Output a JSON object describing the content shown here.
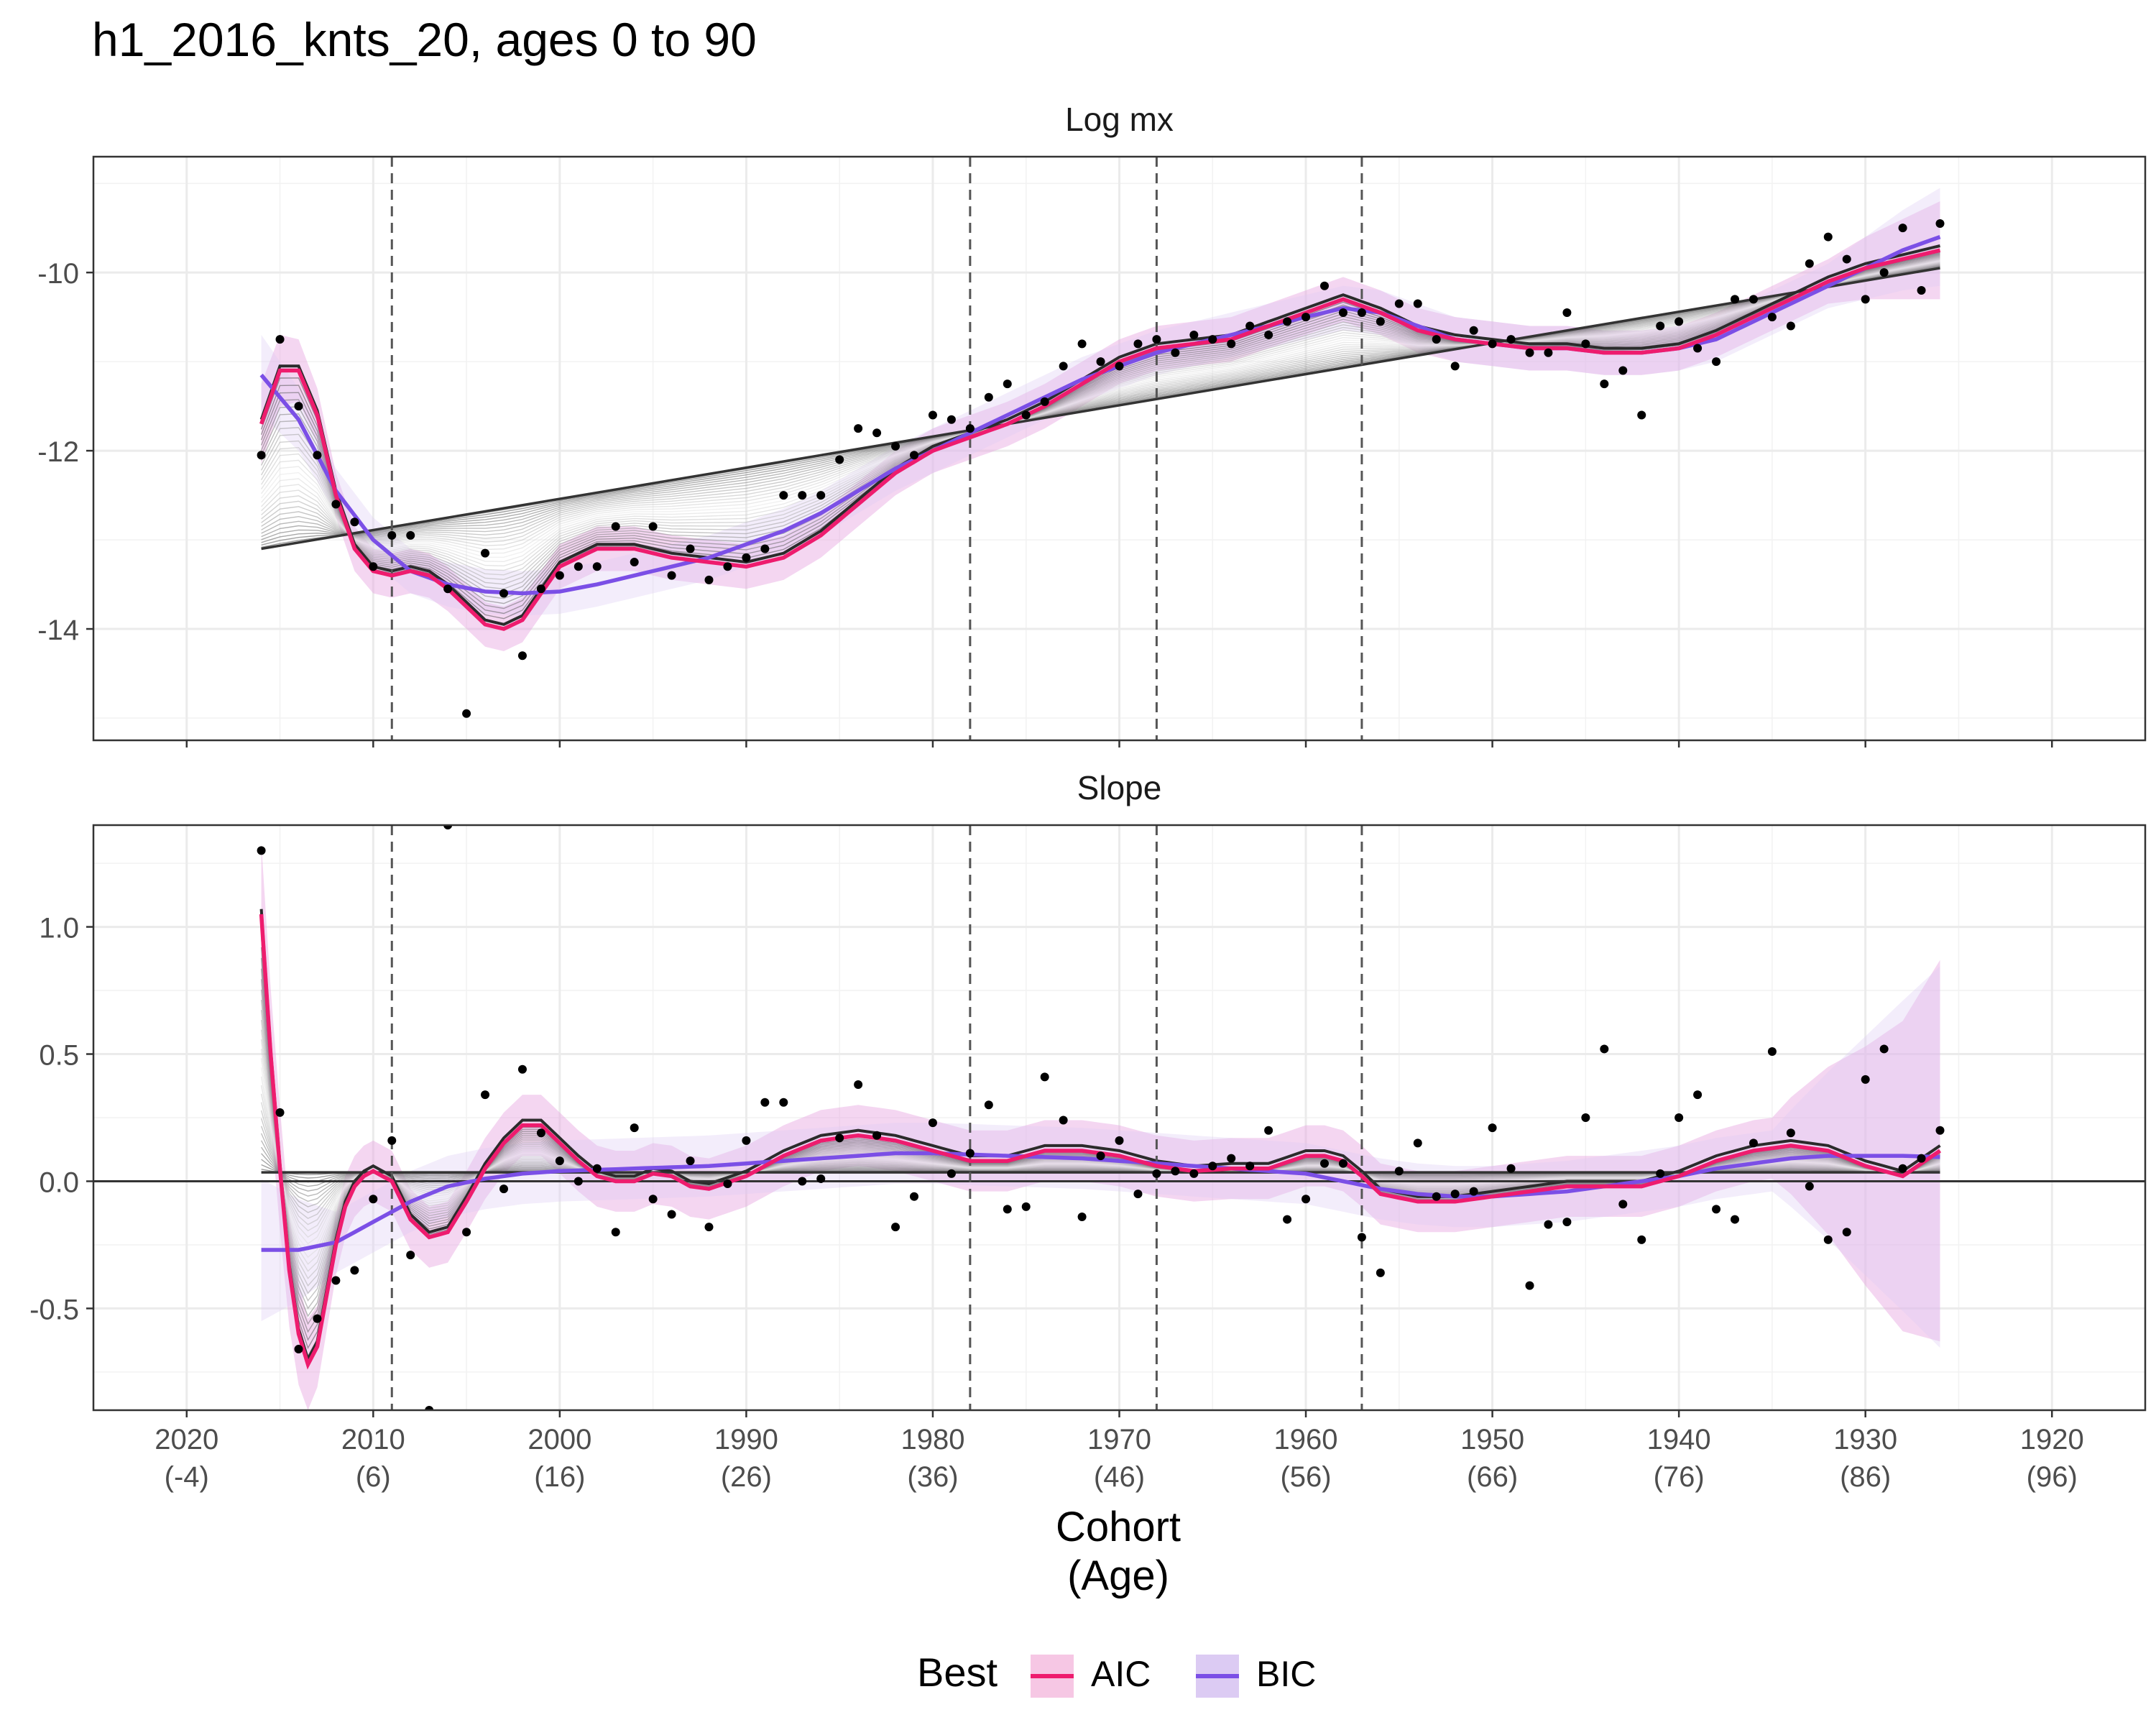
{
  "title": "h1_2016_knts_20, ages 0 to 90",
  "xlabel_line1": "Cohort",
  "xlabel_line2": "(Age)",
  "legend": {
    "title": "Best",
    "items": [
      {
        "label": "AIC",
        "color": "#EE1C6E",
        "fill": "#F6C7E4"
      },
      {
        "label": "BIC",
        "color": "#7B4FE6",
        "fill": "#DCCBF3"
      }
    ]
  },
  "colors": {
    "aic": "#EE1C6E",
    "bic": "#7B4FE6",
    "band": "#E7A5DF",
    "points": "#000000",
    "grid": "#EBEBEB"
  },
  "x_axis": {
    "range": [
      2025,
      1915
    ],
    "ticks": [
      {
        "cohort": 2020,
        "top": "2020",
        "bottom": "(-4)"
      },
      {
        "cohort": 2010,
        "top": "2010",
        "bottom": "(6)"
      },
      {
        "cohort": 2000,
        "top": "2000",
        "bottom": "(16)"
      },
      {
        "cohort": 1990,
        "top": "1990",
        "bottom": "(26)"
      },
      {
        "cohort": 1980,
        "top": "1980",
        "bottom": "(36)"
      },
      {
        "cohort": 1970,
        "top": "1970",
        "bottom": "(46)"
      },
      {
        "cohort": 1960,
        "top": "1960",
        "bottom": "(56)"
      },
      {
        "cohort": 1950,
        "top": "1950",
        "bottom": "(66)"
      },
      {
        "cohort": 1940,
        "top": "1940",
        "bottom": "(76)"
      },
      {
        "cohort": 1930,
        "top": "1930",
        "bottom": "(86)"
      },
      {
        "cohort": 1920,
        "top": "1920",
        "bottom": "(96)"
      }
    ],
    "knots": [
      2009,
      1978,
      1968,
      1957
    ]
  },
  "chart_data": [
    {
      "type": "line",
      "panel": "Log mx",
      "ylim": [
        -15.25,
        -8.7
      ],
      "yticks": [
        -14,
        -12,
        -10
      ],
      "ytick_labels": [
        "-14",
        "-12",
        "-10"
      ],
      "series": [
        {
          "name": "AIC",
          "x": [
            2016,
            2015,
            2014,
            2013,
            2012,
            2011,
            2010,
            2009,
            2008,
            2007,
            2006,
            2005,
            2004,
            2003,
            2002,
            2001,
            2000,
            1998,
            1996,
            1994,
            1992,
            1990,
            1988,
            1986,
            1984,
            1982,
            1980,
            1978,
            1976,
            1974,
            1972,
            1970,
            1968,
            1966,
            1964,
            1962,
            1960,
            1958,
            1956,
            1954,
            1952,
            1950,
            1948,
            1946,
            1944,
            1942,
            1940,
            1938,
            1936,
            1934,
            1932,
            1930,
            1928,
            1926
          ],
          "y": [
            -11.7,
            -11.1,
            -11.1,
            -11.6,
            -12.5,
            -13.1,
            -13.35,
            -13.4,
            -13.35,
            -13.4,
            -13.55,
            -13.75,
            -13.95,
            -14.0,
            -13.9,
            -13.6,
            -13.3,
            -13.1,
            -13.1,
            -13.2,
            -13.25,
            -13.3,
            -13.2,
            -12.95,
            -12.6,
            -12.25,
            -12.0,
            -11.85,
            -11.7,
            -11.5,
            -11.25,
            -11.0,
            -10.85,
            -10.8,
            -10.75,
            -10.6,
            -10.45,
            -10.3,
            -10.45,
            -10.65,
            -10.75,
            -10.8,
            -10.85,
            -10.85,
            -10.9,
            -10.9,
            -10.85,
            -10.7,
            -10.5,
            -10.3,
            -10.1,
            -9.95,
            -9.85,
            -9.75
          ]
        },
        {
          "name": "BIC",
          "x": [
            2016,
            2014,
            2012,
            2010,
            2008,
            2006,
            2004,
            2002,
            2000,
            1998,
            1996,
            1994,
            1992,
            1990,
            1988,
            1986,
            1984,
            1982,
            1980,
            1978,
            1976,
            1974,
            1972,
            1970,
            1968,
            1966,
            1964,
            1962,
            1960,
            1958,
            1956,
            1954,
            1952,
            1950,
            1948,
            1946,
            1944,
            1942,
            1940,
            1938,
            1936,
            1934,
            1932,
            1930,
            1928,
            1926
          ],
          "y": [
            -11.15,
            -11.65,
            -12.45,
            -13.0,
            -13.35,
            -13.5,
            -13.58,
            -13.6,
            -13.58,
            -13.5,
            -13.4,
            -13.3,
            -13.2,
            -13.05,
            -12.9,
            -12.7,
            -12.45,
            -12.2,
            -12.0,
            -11.8,
            -11.6,
            -11.4,
            -11.2,
            -11.05,
            -10.9,
            -10.8,
            -10.7,
            -10.6,
            -10.5,
            -10.4,
            -10.45,
            -10.6,
            -10.75,
            -10.8,
            -10.85,
            -10.85,
            -10.9,
            -10.9,
            -10.85,
            -10.75,
            -10.55,
            -10.35,
            -10.15,
            -9.95,
            -9.75,
            -9.6
          ]
        },
        {
          "name": "",
          "x": [
            2016,
            1926
          ],
          "y": [
            -13.1,
            -9.95
          ]
        }
      ],
      "points": {
        "x": [
          2016,
          2015,
          2014,
          2013,
          2012,
          2011,
          2010,
          2009,
          2008,
          2007,
          2006,
          2005,
          2004,
          2003,
          2002,
          2001,
          2000,
          1999,
          1998,
          1997,
          1996,
          1995,
          1994,
          1993,
          1992,
          1991,
          1990,
          1989,
          1988,
          1987,
          1986,
          1985,
          1984,
          1983,
          1982,
          1981,
          1980,
          1979,
          1978,
          1977,
          1976,
          1975,
          1974,
          1973,
          1972,
          1971,
          1970,
          1969,
          1968,
          1967,
          1966,
          1965,
          1964,
          1963,
          1962,
          1961,
          1960,
          1959,
          1958,
          1957,
          1956,
          1955,
          1954,
          1953,
          1952,
          1951,
          1950,
          1949,
          1948,
          1947,
          1946,
          1945,
          1944,
          1943,
          1942,
          1941,
          1940,
          1939,
          1938,
          1937,
          1936,
          1935,
          1934,
          1933,
          1932,
          1931,
          1930,
          1929,
          1928,
          1927,
          1926
        ],
        "y": [
          -12.05,
          -10.75,
          -11.5,
          -12.05,
          -12.6,
          -12.8,
          -13.3,
          -12.95,
          -12.95,
          -15.3,
          -13.55,
          -14.95,
          -13.15,
          -13.6,
          -14.3,
          -13.55,
          -13.4,
          -13.3,
          -13.3,
          -12.85,
          -13.25,
          -12.85,
          -13.4,
          -13.1,
          -13.45,
          -13.3,
          -13.2,
          -13.1,
          -12.5,
          -12.5,
          -12.5,
          -12.1,
          -11.75,
          -11.8,
          -11.95,
          -12.05,
          -11.6,
          -11.65,
          -11.75,
          -11.4,
          -11.25,
          -11.6,
          -11.45,
          -11.05,
          -10.8,
          -11.0,
          -11.05,
          -10.8,
          -10.75,
          -10.9,
          -10.7,
          -10.75,
          -10.8,
          -10.6,
          -10.7,
          -10.55,
          -10.5,
          -10.15,
          -10.45,
          -10.45,
          -10.55,
          -10.35,
          -10.35,
          -10.75,
          -11.05,
          -10.65,
          -10.8,
          -10.75,
          -10.9,
          -10.9,
          -10.45,
          -10.8,
          -11.25,
          -11.1,
          -11.6,
          -10.6,
          -10.55,
          -10.85,
          -11.0,
          -10.3,
          -10.3,
          -10.5,
          -10.6,
          -9.9,
          -9.6,
          -9.85,
          -10.3,
          -10.0,
          -9.5,
          -10.2,
          -9.45
        ]
      }
    },
    {
      "type": "line",
      "panel": "Slope",
      "ylim": [
        -0.9,
        1.4
      ],
      "yticks": [
        -0.5,
        0.0,
        0.5,
        1.0
      ],
      "ytick_labels": [
        "-0.5",
        "0.0",
        "0.5",
        "1.0"
      ],
      "hline": 0,
      "series": [
        {
          "name": "AIC",
          "x": [
            2016,
            2015.5,
            2015,
            2014.5,
            2014,
            2013.5,
            2013,
            2012.5,
            2012,
            2011.5,
            2011,
            2010.5,
            2010,
            2009,
            2008,
            2007,
            2006,
            2005,
            2004,
            2003,
            2002,
            2001,
            2000,
            1999,
            1998,
            1997,
            1996,
            1995,
            1994,
            1993,
            1992,
            1990,
            1988,
            1986,
            1984,
            1982,
            1980,
            1978,
            1976,
            1974,
            1972,
            1970,
            1968,
            1966,
            1964,
            1962,
            1960,
            1959,
            1958,
            1957,
            1956,
            1954,
            1952,
            1950,
            1948,
            1946,
            1944,
            1942,
            1940,
            1938,
            1936,
            1934,
            1932,
            1930,
            1928,
            1926
          ],
          "y": [
            1.05,
            0.5,
            0.05,
            -0.35,
            -0.6,
            -0.72,
            -0.65,
            -0.45,
            -0.25,
            -0.1,
            -0.02,
            0.02,
            0.04,
            0.0,
            -0.15,
            -0.22,
            -0.2,
            -0.08,
            0.05,
            0.15,
            0.22,
            0.22,
            0.15,
            0.08,
            0.02,
            0.0,
            0.0,
            0.03,
            0.02,
            -0.02,
            -0.03,
            0.02,
            0.1,
            0.16,
            0.18,
            0.16,
            0.12,
            0.08,
            0.08,
            0.12,
            0.12,
            0.1,
            0.06,
            0.04,
            0.05,
            0.05,
            0.1,
            0.1,
            0.08,
            0.02,
            -0.05,
            -0.08,
            -0.08,
            -0.06,
            -0.04,
            -0.02,
            -0.02,
            -0.02,
            0.02,
            0.08,
            0.12,
            0.14,
            0.12,
            0.06,
            0.02,
            0.12
          ]
        },
        {
          "name": "BIC",
          "x": [
            2016,
            2014,
            2012,
            2010,
            2008,
            2006,
            2004,
            2002,
            2000,
            1998,
            1996,
            1994,
            1992,
            1990,
            1988,
            1986,
            1984,
            1982,
            1980,
            1978,
            1976,
            1974,
            1972,
            1970,
            1968,
            1966,
            1964,
            1962,
            1960,
            1958,
            1956,
            1954,
            1952,
            1950,
            1948,
            1946,
            1944,
            1942,
            1940,
            1938,
            1936,
            1934,
            1932,
            1930,
            1928,
            1926
          ],
          "y": [
            -0.27,
            -0.27,
            -0.24,
            -0.16,
            -0.08,
            -0.02,
            0.01,
            0.03,
            0.04,
            0.045,
            0.05,
            0.055,
            0.06,
            0.07,
            0.08,
            0.09,
            0.1,
            0.11,
            0.11,
            0.105,
            0.1,
            0.095,
            0.09,
            0.08,
            0.07,
            0.06,
            0.05,
            0.04,
            0.03,
            0.0,
            -0.03,
            -0.05,
            -0.06,
            -0.06,
            -0.05,
            -0.04,
            -0.02,
            0.0,
            0.02,
            0.05,
            0.07,
            0.09,
            0.1,
            0.1,
            0.1,
            0.095
          ]
        },
        {
          "name": "",
          "x": [
            2016,
            1926
          ],
          "y": [
            0.035,
            0.035
          ]
        }
      ],
      "points": {
        "x": [
          2016,
          2015,
          2014,
          2013,
          2012,
          2011,
          2010,
          2009,
          2008,
          2007,
          2006,
          2005,
          2004,
          2003,
          2002,
          2001,
          2000,
          1999,
          1998,
          1997,
          1996,
          1995,
          1994,
          1993,
          1992,
          1991,
          1990,
          1989,
          1988,
          1987,
          1986,
          1985,
          1984,
          1983,
          1982,
          1981,
          1980,
          1979,
          1978,
          1977,
          1976,
          1975,
          1974,
          1973,
          1972,
          1971,
          1970,
          1969,
          1968,
          1967,
          1966,
          1965,
          1964,
          1963,
          1962,
          1961,
          1960,
          1959,
          1958,
          1957,
          1956,
          1955,
          1954,
          1953,
          1952,
          1951,
          1950,
          1949,
          1948,
          1947,
          1946,
          1945,
          1944,
          1943,
          1942,
          1941,
          1940,
          1939,
          1938,
          1937,
          1936,
          1935,
          1934,
          1933,
          1932,
          1931,
          1930,
          1929,
          1928,
          1927,
          1926
        ],
        "y": [
          1.3,
          0.27,
          -0.66,
          -0.54,
          -0.39,
          -0.35,
          -0.07,
          0.16,
          -0.29,
          -0.9,
          1.4,
          -0.2,
          0.34,
          -0.03,
          0.44,
          0.19,
          0.08,
          0.0,
          0.05,
          -0.2,
          0.21,
          -0.07,
          -0.13,
          0.08,
          -0.18,
          -0.01,
          0.16,
          0.31,
          0.31,
          0.0,
          0.01,
          0.17,
          0.38,
          0.18,
          -0.18,
          -0.06,
          0.23,
          0.03,
          0.11,
          0.3,
          -0.11,
          -0.1,
          0.41,
          0.24,
          -0.14,
          0.1,
          0.16,
          -0.05,
          0.03,
          0.04,
          0.03,
          0.06,
          0.09,
          0.06,
          0.2,
          -0.15,
          -0.07,
          0.07,
          0.07,
          -0.22,
          -0.36,
          0.04,
          0.15,
          -0.06,
          -0.05,
          -0.04,
          0.21,
          0.05,
          -0.41,
          -0.17,
          -0.16,
          0.25,
          0.52,
          -0.09,
          -0.23,
          0.03,
          0.25,
          0.34,
          -0.11,
          -0.15,
          0.15,
          0.51,
          0.19,
          -0.02,
          -0.23,
          -0.2,
          0.4,
          0.52,
          0.05,
          0.09,
          0.2
        ]
      }
    }
  ]
}
